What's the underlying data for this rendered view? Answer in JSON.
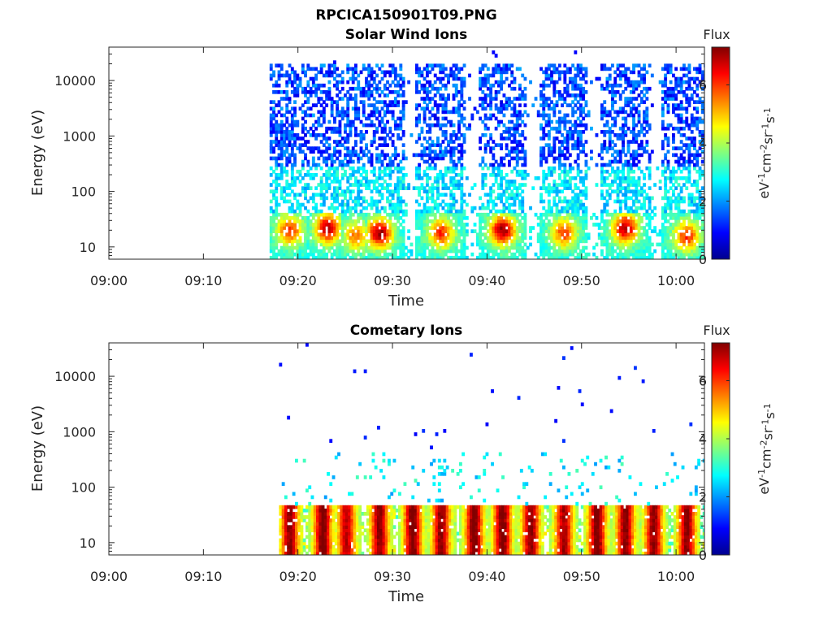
{
  "figure": {
    "filename": "RPCICA150901T09.PNG"
  },
  "chart_data": [
    {
      "type": "heatmap",
      "title": "Solar Wind Ions",
      "xlabel": "Time",
      "ylabel": "Energy (eV)",
      "y_scale": "log",
      "ylim": [
        6,
        40000
      ],
      "xlim": [
        "09:00",
        "10:03"
      ],
      "x_tick_labels": [
        "09:00",
        "09:10",
        "09:20",
        "09:30",
        "09:40",
        "09:50",
        "10:00"
      ],
      "y_tick_labels": [
        "10",
        "100",
        "1000",
        "10000"
      ],
      "colorbar": {
        "title": "Flux",
        "label_parts": [
          "eV",
          "-1",
          "cm",
          "-2",
          "sr",
          "-1",
          "s",
          "-1"
        ],
        "range": [
          0,
          7.3
        ],
        "tick_labels": [
          "0",
          "2",
          "4",
          "6"
        ],
        "colormap": "jet"
      },
      "data_start": "09:17",
      "bursts": [
        {
          "center": "09:19",
          "peak_flux": 5.8,
          "peak_energy_eV": 20
        },
        {
          "center": "09:23",
          "peak_flux": 6.6,
          "peak_energy_eV": 22
        },
        {
          "center": "09:26",
          "peak_flux": 5.2,
          "peak_energy_eV": 16
        },
        {
          "center": "09:28.5",
          "peak_flux": 6.8,
          "peak_energy_eV": 18
        },
        {
          "center": "09:35",
          "peak_flux": 5.8,
          "peak_energy_eV": 18
        },
        {
          "center": "09:41.5",
          "peak_flux": 6.8,
          "peak_energy_eV": 20
        },
        {
          "center": "09:48",
          "peak_flux": 5.6,
          "peak_energy_eV": 18
        },
        {
          "center": "09:54.5",
          "peak_flux": 6.6,
          "peak_energy_eV": 22
        },
        {
          "center": "10:01",
          "peak_flux": 5.8,
          "peak_energy_eV": 16
        }
      ],
      "high_energy_population": {
        "energy_range_eV": [
          300,
          20000
        ],
        "typical_flux": 1.3
      }
    },
    {
      "type": "heatmap",
      "title": "Cometary Ions",
      "xlabel": "Time",
      "ylabel": "Energy (eV)",
      "y_scale": "log",
      "ylim": [
        6,
        40000
      ],
      "xlim": [
        "09:00",
        "10:03"
      ],
      "x_tick_labels": [
        "09:00",
        "09:10",
        "09:20",
        "09:30",
        "09:40",
        "09:50",
        "10:00"
      ],
      "y_tick_labels": [
        "10",
        "100",
        "1000",
        "10000"
      ],
      "colorbar": {
        "title": "Flux",
        "label_parts": [
          "eV",
          "-1",
          "cm",
          "-2",
          "sr",
          "-1",
          "s",
          "-1"
        ],
        "range": [
          0,
          7.3
        ],
        "tick_labels": [
          "0",
          "2",
          "4",
          "6"
        ],
        "colormap": "jet"
      },
      "data_start": "09:18",
      "bursts": [
        {
          "center": "09:19",
          "peak_flux": 7.0
        },
        {
          "center": "09:22.5",
          "peak_flux": 7.2
        },
        {
          "center": "09:25",
          "peak_flux": 6.6
        },
        {
          "center": "09:28.5",
          "peak_flux": 7.0
        },
        {
          "center": "09:32",
          "peak_flux": 7.2
        },
        {
          "center": "09:35",
          "peak_flux": 7.0
        },
        {
          "center": "09:38.5",
          "peak_flux": 7.2
        },
        {
          "center": "09:41.5",
          "peak_flux": 7.2
        },
        {
          "center": "09:44.5",
          "peak_flux": 7.0
        },
        {
          "center": "09:48",
          "peak_flux": 6.8
        },
        {
          "center": "09:51.5",
          "peak_flux": 7.2
        },
        {
          "center": "09:54.5",
          "peak_flux": 7.0
        },
        {
          "center": "09:57.5",
          "peak_flux": 7.0
        },
        {
          "center": "10:01",
          "peak_flux": 7.0
        }
      ],
      "low_energy_band_eV": [
        6,
        45
      ],
      "sparse_high_energy_flux": 0.8
    }
  ]
}
